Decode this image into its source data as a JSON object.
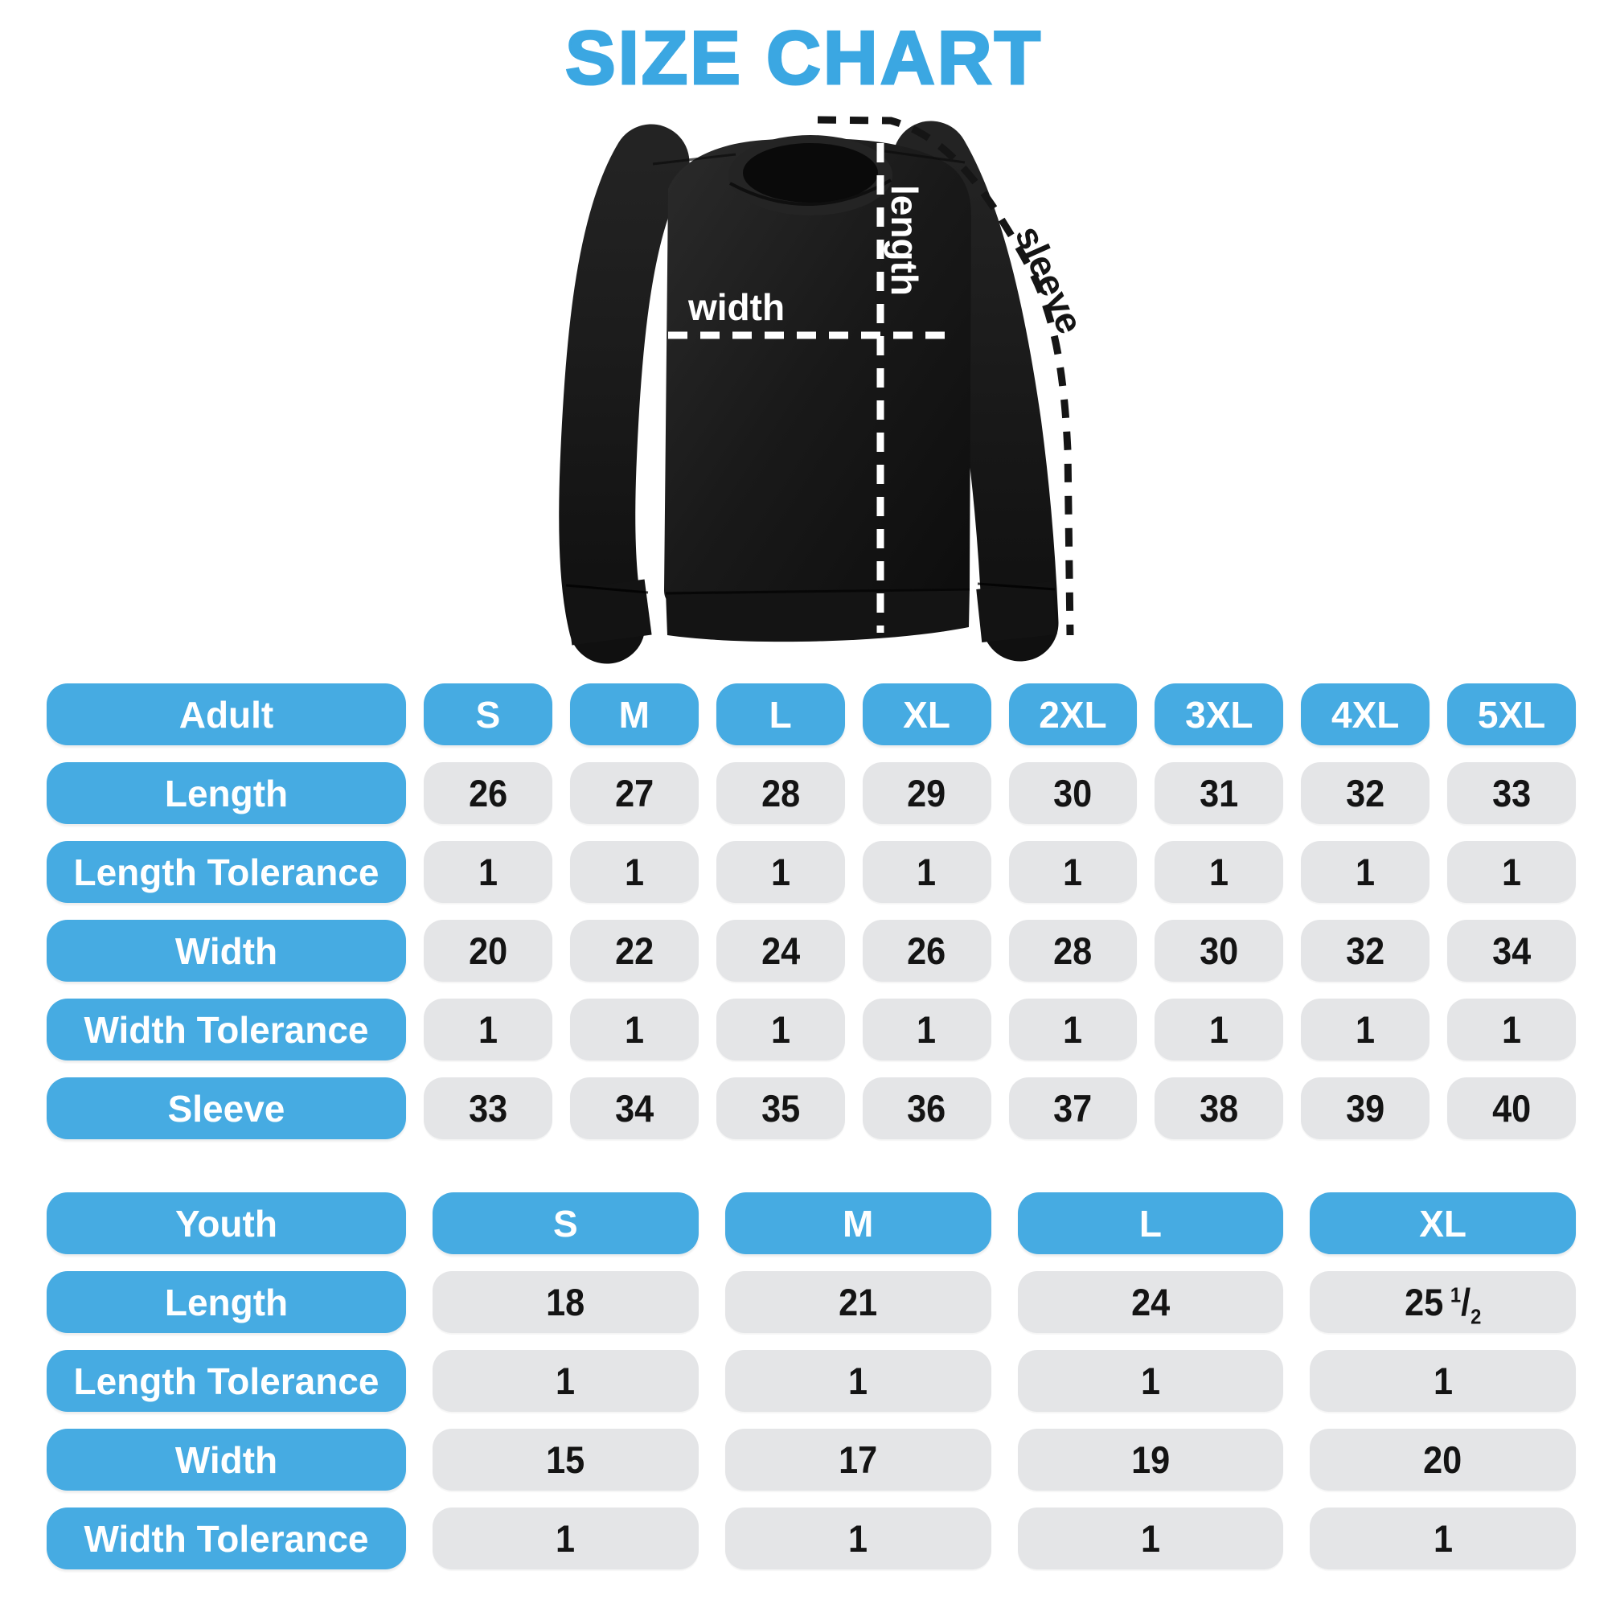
{
  "title": "SIZE CHART",
  "colors": {
    "title_blue": "#3BA7E2",
    "capsule_blue": "#46ABE2",
    "cell_gray": "#E4E5E7",
    "value_text": "#141414",
    "garment_black": "#171717",
    "measure_line_on_garment": "#FFFFFF",
    "measure_line_outside": "#151515"
  },
  "diagram": {
    "garment": "black crewneck sweatshirt",
    "measure_labels": {
      "length": "length",
      "width": "width",
      "sleeve": "sleeve"
    }
  },
  "chart_data": [
    {
      "type": "table",
      "title": "Adult",
      "columns": [
        "S",
        "M",
        "L",
        "XL",
        "2XL",
        "3XL",
        "4XL",
        "5XL"
      ],
      "rows": [
        {
          "label": "Length",
          "values": [
            "26",
            "27",
            "28",
            "29",
            "30",
            "31",
            "32",
            "33"
          ]
        },
        {
          "label": "Length Tolerance",
          "values": [
            "1",
            "1",
            "1",
            "1",
            "1",
            "1",
            "1",
            "1"
          ]
        },
        {
          "label": "Width",
          "values": [
            "20",
            "22",
            "24",
            "26",
            "28",
            "30",
            "32",
            "34"
          ]
        },
        {
          "label": "Width Tolerance",
          "values": [
            "1",
            "1",
            "1",
            "1",
            "1",
            "1",
            "1",
            "1"
          ]
        },
        {
          "label": "Sleeve",
          "values": [
            "33",
            "34",
            "35",
            "36",
            "37",
            "38",
            "39",
            "40"
          ]
        }
      ]
    },
    {
      "type": "table",
      "title": "Youth",
      "columns": [
        "S",
        "M",
        "L",
        "XL"
      ],
      "rows": [
        {
          "label": "Length",
          "values": [
            "18",
            "21",
            "24",
            "25 1/2"
          ]
        },
        {
          "label": "Length Tolerance",
          "values": [
            "1",
            "1",
            "1",
            "1"
          ]
        },
        {
          "label": "Width",
          "values": [
            "15",
            "17",
            "19",
            "20"
          ]
        },
        {
          "label": "Width Tolerance",
          "values": [
            "1",
            "1",
            "1",
            "1"
          ]
        }
      ]
    }
  ]
}
